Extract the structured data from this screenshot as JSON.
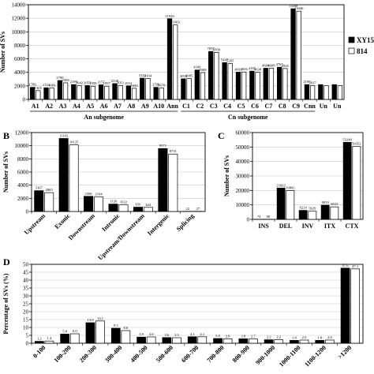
{
  "series_colors": {
    "XY15": "#000000",
    "814": "#ffffff"
  },
  "chart_data": [
    {
      "panel": "A",
      "type": "bar",
      "ylabel": "Number of SVs",
      "ylim": [
        0,
        14000
      ],
      "yticks": [
        0,
        2000,
        4000,
        6000,
        8000,
        10000,
        12000,
        14000
      ],
      "legend": "right",
      "categories": [
        "A1",
        "A2",
        "A3",
        "A4",
        "A5",
        "A6",
        "A7",
        "A8",
        "A9",
        "A10",
        "Ann",
        "C1",
        "C2",
        "C3",
        "C4",
        "C5",
        "C6",
        "C7",
        "C8",
        "C9",
        "Cnn",
        "Un",
        "Un"
      ],
      "groups": [
        {
          "label": "An subgenome"
        },
        {
          "label": "Cn subgenome"
        }
      ],
      "series": [
        {
          "name": "XY15",
          "values": [
            1789,
            1724,
            2798,
            2190,
            2055,
            2157,
            2338,
            2012,
            3142,
            1790,
            11929,
            3050,
            4349,
            7097,
            5447,
            4033,
            4185,
            4609,
            4765,
            13408,
            2190,
            2190,
            2190
          ],
          "labels": [
            "1789",
            "1724",
            "2798",
            "2190",
            "2055",
            "2157",
            "2338",
            "2012",
            "3142",
            "1790",
            "11929",
            "3050",
            "4349",
            "7097",
            "5447",
            "4033",
            "4185",
            "4609",
            "4765",
            "13408",
            "2190",
            "",
            ""
          ]
        },
        {
          "name": "814",
          "values": [
            1305,
            1683,
            2458,
            2042,
            1958,
            1957,
            2051,
            1650,
            3104,
            1678,
            11003,
            3085,
            3968,
            6958,
            5295,
            4056,
            4038,
            4608,
            4565,
            13046,
            2037,
            2037,
            2037
          ],
          "labels": [
            "1305",
            "1683",
            "2458",
            "2042",
            "1958",
            "1957",
            "2051",
            "1650",
            "3104",
            "1678",
            "11003",
            "3085",
            "3968",
            "6958",
            "5295",
            "4056",
            "4038",
            "4608",
            "4565",
            "13046",
            "2037",
            "",
            ""
          ]
        }
      ]
    },
    {
      "panel": "B",
      "type": "bar",
      "ylabel": "Number of SVs",
      "ylim": [
        0,
        12000
      ],
      "yticks": [
        0,
        2000,
        4000,
        6000,
        8000,
        10000,
        12000
      ],
      "categories": [
        "Upstream",
        "Exonic",
        "Downstream",
        "Intronic",
        "Upstream/Downstream",
        "Intergenic",
        "Splicing"
      ],
      "series": [
        {
          "name": "XY15",
          "values": [
            3167,
            11102,
            2306,
            1126,
            656,
            9571,
            22
          ],
          "labels": [
            "3167",
            "11102",
            "2306",
            "1126",
            "656",
            "9571",
            "22"
          ]
        },
        {
          "name": "814",
          "values": [
            2865,
            10125,
            2194,
            1022,
            624,
            8731,
            27
          ],
          "labels": [
            "2865",
            "10125",
            "2194",
            "1022",
            "624",
            "8731",
            "27"
          ]
        }
      ]
    },
    {
      "panel": "C",
      "type": "bar",
      "ylabel": "Number of SVs",
      "ylim": [
        0,
        60000
      ],
      "yticks": [
        0,
        10000,
        20000,
        30000,
        40000,
        50000,
        60000
      ],
      "categories": [
        "INS",
        "DEL",
        "INV",
        "ITX",
        "CTX"
      ],
      "series": [
        {
          "name": "XY15",
          "values": [
            74,
            21662,
            6214,
            9819,
            53240
          ],
          "labels": [
            "74",
            "21662",
            "6214",
            "9819",
            "53240"
          ]
        },
        {
          "name": "814",
          "values": [
            88,
            19891,
            5629,
            8633,
            50352
          ],
          "labels": [
            "88",
            "19891",
            "5629",
            "8633",
            "50352"
          ]
        }
      ]
    },
    {
      "panel": "D",
      "type": "bar",
      "ylabel": "Percentage of SVs (%)",
      "ylim": [
        0,
        50
      ],
      "yticks": [
        0,
        5,
        10,
        15,
        20,
        25,
        30,
        35,
        40,
        45,
        50
      ],
      "categories": [
        "0-100",
        "100-200",
        "200-300",
        "300-400",
        "400-500",
        "500-600",
        "600-700",
        "700-800",
        "800-900",
        "900-1000",
        "1000-1100",
        "1100-1200",
        ">1200"
      ],
      "series": [
        {
          "name": "XY15",
          "values": [
            1.2,
            5.8,
            13.0,
            9.5,
            3.9,
            3.6,
            4.1,
            3.0,
            2.8,
            2.2,
            1.8,
            1.8,
            47.6
          ],
          "labels": [
            "1.2",
            "5.8",
            "13.0",
            "9.5",
            "3.9",
            "3.6",
            "4.1",
            "3.0",
            "2.8",
            "2.2",
            "1.8",
            "1.8",
            "47.6"
          ]
        },
        {
          "name": "814",
          "values": [
            1.4,
            6.0,
            14.1,
            8.0,
            4.0,
            3.5,
            4.1,
            2.8,
            2.7,
            2.2,
            2.0,
            2.0,
            47.1
          ],
          "labels": [
            "1.4",
            "6.0",
            "14.1",
            "8.0",
            "4.0",
            "3.5",
            "4.1",
            "2.8",
            "2.7",
            "2.2",
            "2.0",
            "2.0",
            "47.1"
          ]
        }
      ]
    }
  ]
}
